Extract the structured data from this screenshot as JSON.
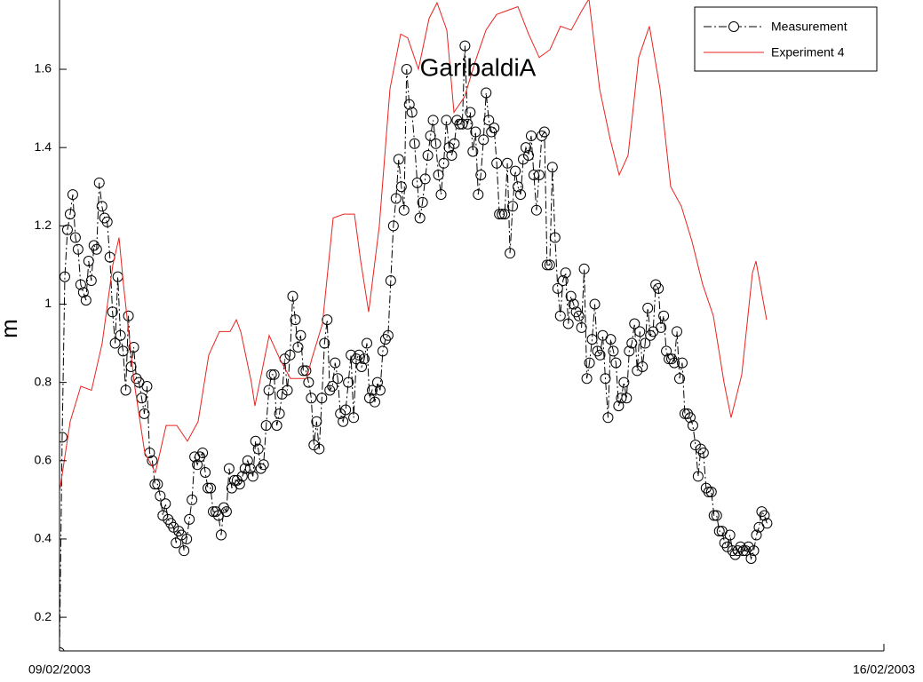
{
  "chart_data": {
    "type": "line",
    "title": "GaribaldiA",
    "y_label": "m",
    "xlim": [
      0,
      168
    ],
    "xticks": [
      {
        "value": 0,
        "label": "09/02/2003"
      },
      {
        "value": 168,
        "label": "16/02/2003"
      }
    ],
    "ylim": [
      0.114,
      1.777
    ],
    "yticks": [
      0.2,
      0.4,
      0.6,
      0.8,
      1,
      1.2,
      1.4,
      1.6
    ],
    "legend": "upper right",
    "series": [
      {
        "name": "Measurement",
        "color": "#000000",
        "marker": "circle",
        "dash": "dashdot",
        "x": [
          0,
          0.54,
          1.08,
          1.62,
          2.16,
          2.7,
          3.24,
          3.78,
          4.32,
          4.86,
          5.4,
          5.94,
          6.48,
          7.02,
          7.56,
          8.1,
          8.64,
          9.18,
          9.72,
          10.26,
          10.8,
          11.34,
          11.88,
          12.42,
          12.96,
          13.5,
          14.04,
          14.58,
          15.12,
          15.66,
          16.2,
          16.74,
          17.28,
          17.82,
          18.36,
          18.9,
          19.44,
          19.98,
          20.52,
          21.06,
          21.6,
          22.14,
          22.68,
          23.22,
          23.76,
          24.3,
          24.84,
          25.38,
          25.92,
          26.46,
          27,
          27.54,
          28.08,
          28.62,
          29.16,
          29.7,
          30.24,
          30.78,
          31.32,
          31.86,
          32.4,
          32.94,
          33.48,
          34.02,
          34.56,
          35.1,
          35.64,
          36.18,
          36.72,
          37.26,
          37.8,
          38.34,
          38.88,
          39.42,
          39.96,
          40.5,
          41.04,
          41.58,
          42.12,
          42.66,
          43.2,
          43.74,
          44.28,
          44.82,
          45.36,
          45.9,
          46.44,
          46.98,
          47.52,
          48.06,
          48.6,
          49.14,
          49.68,
          50.22,
          50.76,
          51.3,
          51.84,
          52.38,
          52.92,
          53.46,
          54,
          54.54,
          55.08,
          55.62,
          56.16,
          56.7,
          57.24,
          57.78,
          58.32,
          58.86,
          59.4,
          59.94,
          60.48,
          61.02,
          61.56,
          62.1,
          62.64,
          63.18,
          63.72,
          64.26,
          64.8,
          65.34,
          65.88,
          66.42,
          66.96,
          67.5,
          68.04,
          68.58,
          69.12,
          69.66,
          70.2,
          70.74,
          71.28,
          71.82,
          72.36,
          72.9,
          73.44,
          73.98,
          74.52,
          75.06,
          75.6,
          76.14,
          76.68,
          77.22,
          77.76,
          78.3,
          78.84,
          79.38,
          79.92,
          80.46,
          81,
          81.54,
          82.08,
          82.62,
          83.16,
          83.7,
          84.24,
          84.78,
          85.32,
          85.86,
          86.4,
          86.94,
          87.48,
          88.02,
          88.56,
          89.1,
          89.64,
          90.18,
          90.72,
          91.26,
          91.8,
          92.34,
          92.88,
          93.42,
          93.96,
          94.5,
          95.04,
          95.58,
          96.12,
          96.66,
          97.2,
          97.74,
          98.28,
          98.82,
          99.36,
          99.9,
          100.44,
          100.98,
          101.52,
          102.06,
          102.6,
          103.14,
          103.68,
          104.22,
          104.76,
          105.3,
          105.84,
          106.38,
          106.92,
          107.46,
          108,
          108.54,
          109.08,
          109.62,
          110.16,
          110.7,
          111.24,
          111.78,
          112.32,
          112.86,
          113.4,
          113.94,
          114.48,
          115.02,
          115.56,
          116.1,
          116.64,
          117.18,
          117.72,
          118.26,
          118.8,
          119.34,
          119.88,
          120.42,
          120.96,
          121.5,
          122.04,
          122.58,
          123.12,
          123.66,
          124.2,
          124.74,
          125.28,
          125.82,
          126.36,
          126.9,
          127.44,
          127.98,
          128.52,
          129.06,
          129.6,
          130.14,
          130.68,
          131.22,
          131.76,
          132.3,
          132.84,
          133.38,
          133.92,
          134.46,
          135,
          135.54,
          136.08,
          136.62,
          137.16,
          137.7,
          138.24,
          138.78,
          139.32,
          139.86,
          140.4,
          140.94,
          141.48,
          142.02,
          142.56,
          143.1,
          143.64,
          144.18
        ],
        "values": [
          0.11,
          0.66,
          1.07,
          1.19,
          1.23,
          1.28,
          1.17,
          1.14,
          1.05,
          1.03,
          1.01,
          1.11,
          1.06,
          1.15,
          1.14,
          1.31,
          1.25,
          1.22,
          1.21,
          1.12,
          0.98,
          0.9,
          1.07,
          0.92,
          0.88,
          0.78,
          0.97,
          0.84,
          0.89,
          0.81,
          0.8,
          0.76,
          0.72,
          0.79,
          0.62,
          0.6,
          0.54,
          0.54,
          0.51,
          0.46,
          0.49,
          0.45,
          0.44,
          0.43,
          0.39,
          0.42,
          0.41,
          0.37,
          0.4,
          0.45,
          0.5,
          0.61,
          0.59,
          0.61,
          0.62,
          0.57,
          0.53,
          0.53,
          0.47,
          0.47,
          0.46,
          0.41,
          0.48,
          0.47,
          0.58,
          0.53,
          0.55,
          0.55,
          0.54,
          0.56,
          0.58,
          0.6,
          0.58,
          0.56,
          0.65,
          0.63,
          0.58,
          0.59,
          0.69,
          0.78,
          0.82,
          0.82,
          0.69,
          0.72,
          0.77,
          0.86,
          0.78,
          0.87,
          1.02,
          0.96,
          0.89,
          0.92,
          0.83,
          0.83,
          0.8,
          0.76,
          0.64,
          0.7,
          0.63,
          0.76,
          0.9,
          0.96,
          0.78,
          0.79,
          0.85,
          0.81,
          0.72,
          0.7,
          0.73,
          0.8,
          0.87,
          0.71,
          0.86,
          0.87,
          0.84,
          0.86,
          0.9,
          0.76,
          0.78,
          0.75,
          0.8,
          0.78,
          0.88,
          0.91,
          0.92,
          1.06,
          1.2,
          1.27,
          1.37,
          1.3,
          1.24,
          1.6,
          1.51,
          1.49,
          1.41,
          1.31,
          1.22,
          1.26,
          1.32,
          1.38,
          1.43,
          1.47,
          1.41,
          1.33,
          1.28,
          1.36,
          1.47,
          1.4,
          1.38,
          1.41,
          1.47,
          1.46,
          1.46,
          1.66,
          1.46,
          1.49,
          1.39,
          1.44,
          1.28,
          1.33,
          1.42,
          1.54,
          1.47,
          1.44,
          1.45,
          1.36,
          1.23,
          1.23,
          1.23,
          1.36,
          1.13,
          1.25,
          1.34,
          1.3,
          1.28,
          1.37,
          1.4,
          1.38,
          1.43,
          1.33,
          1.24,
          1.33,
          1.43,
          1.44,
          1.1,
          1.1,
          1.35,
          1.17,
          1.04,
          0.97,
          1.06,
          1.08,
          0.95,
          1.02,
          1.0,
          0.98,
          0.97,
          0.94,
          1.09,
          0.81,
          0.85,
          0.91,
          1.0,
          0.88,
          0.87,
          0.92,
          0.81,
          0.71,
          0.91,
          0.88,
          0.85,
          0.74,
          0.76,
          0.8,
          0.76,
          0.88,
          0.9,
          0.95,
          0.83,
          0.93,
          0.84,
          0.9,
          0.99,
          0.92,
          0.93,
          1.05,
          1.04,
          0.94,
          0.97,
          0.88,
          0.86,
          0.86,
          0.85,
          0.93,
          0.81,
          0.85,
          0.72,
          0.72,
          0.71,
          0.69,
          0.64,
          0.56,
          0.63,
          0.62,
          0.53,
          0.52,
          0.52,
          0.46,
          0.46,
          0.42,
          0.42,
          0.39,
          0.38,
          0.41,
          0.37,
          0.36,
          0.37,
          0.38,
          0.37,
          0.37,
          0.38,
          0.35,
          0.37,
          0.41,
          0.43,
          0.47,
          0.46,
          0.44
        ]
      },
      {
        "name": "Experiment 4",
        "color": "#e8231f",
        "x": [
          0,
          2.17,
          4.34,
          6.52,
          8.69,
          10.86,
          12.13,
          13.03,
          15.21,
          17.38,
          19.55,
          21.72,
          23.9,
          26.07,
          28.24,
          30.41,
          32.59,
          34.76,
          36.03,
          36.93,
          39.1,
          39.82,
          41.27,
          42.72,
          44.89,
          47.06,
          49.24,
          50.33,
          51.41,
          53.58,
          55.76,
          57.93,
          60.1,
          61.37,
          63,
          65.17,
          67.34,
          69.52,
          70.96,
          73.14,
          75.31,
          76.94,
          78.93,
          80.38,
          82.55,
          84.72,
          86.9,
          89.07,
          91.24,
          93.41,
          95.59,
          97.76,
          99.93,
          102.1,
          104.27,
          106.45,
          107.89,
          110.06,
          112.24,
          114.05,
          115.86,
          118.03,
          120.21,
          122.38,
          124.55,
          126.72,
          128.9,
          131.07,
          133.24,
          135.41,
          136.86,
          139.03,
          141.21,
          141.93,
          144.1
        ],
        "values": [
          0.52,
          0.7,
          0.79,
          0.78,
          0.9,
          1.1,
          1.17,
          1.05,
          0.8,
          0.62,
          0.57,
          0.69,
          0.69,
          0.65,
          0.7,
          0.87,
          0.93,
          0.93,
          0.96,
          0.93,
          0.8,
          0.74,
          0.83,
          0.92,
          0.86,
          0.81,
          0.81,
          0.81,
          0.86,
          0.95,
          1.22,
          1.23,
          1.23,
          1.11,
          0.98,
          1.2,
          1.55,
          1.69,
          1.68,
          1.6,
          1.73,
          1.77,
          1.7,
          1.49,
          1.53,
          1.62,
          1.7,
          1.74,
          1.75,
          1.76,
          1.69,
          1.63,
          1.65,
          1.71,
          1.7,
          1.75,
          1.78,
          1.55,
          1.42,
          1.33,
          1.38,
          1.63,
          1.71,
          1.55,
          1.3,
          1.25,
          1.16,
          1.05,
          0.97,
          0.8,
          0.71,
          0.82,
          1.08,
          1.11,
          0.96
        ]
      }
    ]
  }
}
